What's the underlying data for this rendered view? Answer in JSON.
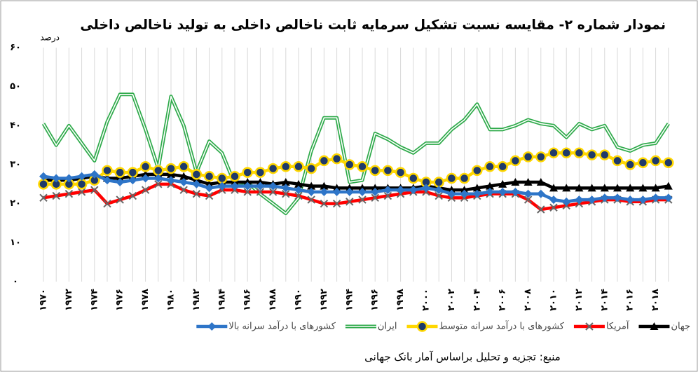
{
  "chart_data": {
    "type": "line",
    "title": "نمودار شماره ۲- مقایسه نسبت تشکیل سرمایه ثابت ناخالص داخلی به تولید ناخالص داخلی",
    "y_label": "درصد",
    "source": "منبع: تجزیه و تحلیل براساس آمار بانک جهانی",
    "categories": [
      "۱۹۷۰",
      null,
      "۱۹۷۲",
      null,
      "۱۹۷۴",
      null,
      "۱۹۷۶",
      null,
      "۱۹۷۸",
      null,
      "۱۹۸۰",
      null,
      "۱۹۸۲",
      null,
      "۱۹۸۴",
      null,
      "۱۹۸۶",
      null,
      "۱۹۸۸",
      null,
      "۱۹۹۰",
      null,
      "۱۹۹۲",
      null,
      "۱۹۹۴",
      null,
      "۱۹۹۶",
      null,
      "۱۹۹۸",
      null,
      "۲۰۰۰",
      null,
      "۲۰۰۲",
      null,
      "۲۰۰۴",
      null,
      "۲۰۰۶",
      null,
      "۲۰۰۸",
      null,
      "۲۰۱۰",
      null,
      "۲۰۱۲",
      null,
      "۲۰۱۴",
      null,
      "۲۰۱۶",
      null,
      "۲۰۱۸",
      null
    ],
    "series": [
      {
        "name": "جهان",
        "color": "#000000",
        "marker": "triangle",
        "values": [
          26,
          26,
          26,
          26.5,
          27,
          26.5,
          26.5,
          27,
          27.5,
          27.5,
          27.5,
          27,
          26,
          25,
          25.5,
          25.5,
          25.5,
          25.5,
          25,
          25.5,
          25,
          24.5,
          24.5,
          24,
          24,
          24,
          24,
          24,
          24,
          24,
          24.5,
          24,
          23.5,
          23.5,
          24,
          24.5,
          25,
          25.5,
          25.5,
          25.5,
          24,
          24,
          24,
          24,
          24,
          24,
          24,
          24,
          24,
          24.5
        ]
      },
      {
        "name": "آمریکا",
        "color": "#ff0000",
        "marker": "cross",
        "values": [
          21.5,
          22,
          22.5,
          23,
          23.5,
          20,
          21,
          22,
          23.5,
          25,
          25,
          23.5,
          22.5,
          22,
          23.5,
          23.5,
          23,
          23,
          23,
          22.5,
          22,
          21,
          20,
          20,
          20.5,
          21,
          21.5,
          22,
          22.5,
          23,
          23,
          22,
          21.5,
          21.5,
          22,
          22.5,
          22.5,
          22.5,
          21,
          18.5,
          19,
          19.5,
          20,
          20.5,
          21,
          21,
          20.5,
          20.5,
          21,
          21
        ]
      },
      {
        "name": "کشورهای با درآمد سرانه متوسط",
        "color": "#ffd700",
        "marker": "circle",
        "values": [
          25,
          25,
          25,
          25,
          26,
          28.5,
          28,
          28,
          29.5,
          28.5,
          29,
          29.5,
          27.5,
          27,
          26.5,
          27,
          28,
          28,
          29,
          29.5,
          29.5,
          29,
          31,
          31.5,
          30,
          29.5,
          28.5,
          28.5,
          28,
          26.5,
          25.5,
          25.5,
          26.5,
          26.5,
          28.5,
          29.5,
          29.5,
          31,
          32,
          32,
          33,
          33,
          33,
          32.5,
          32.5,
          31,
          30,
          30.5,
          31,
          30.5
        ]
      },
      {
        "name": "ایران",
        "color": "#2eaa4a",
        "marker": "double",
        "values": [
          40.5,
          35,
          40,
          35.5,
          31,
          41,
          48,
          48,
          39,
          29,
          47.5,
          40,
          28,
          36,
          33,
          25,
          25.5,
          22.5,
          20,
          17.5,
          21.5,
          33.5,
          42,
          42,
          25.5,
          26,
          38,
          36.5,
          34.5,
          33,
          35.5,
          35.5,
          39,
          41.5,
          45.5,
          39,
          39,
          40,
          41.5,
          40.5,
          40,
          37,
          40.5,
          39,
          40,
          34.5,
          33.5,
          35,
          35.5,
          40.5
        ]
      },
      {
        "name": "کشورهای با درآمد سرانه بالا",
        "color": "#2e75c8",
        "marker": "diamond",
        "values": [
          27,
          26.5,
          26.5,
          27,
          27.5,
          26,
          25.5,
          26,
          26.5,
          26.5,
          26,
          25.5,
          25,
          24,
          24.5,
          24.5,
          24.5,
          24.5,
          24.5,
          24,
          23.5,
          23,
          23,
          23,
          23,
          23,
          23,
          23.5,
          23.5,
          23.5,
          24,
          23.5,
          22.5,
          22.5,
          22.5,
          23,
          23,
          23,
          22.5,
          22.5,
          21,
          20.5,
          21,
          21,
          21.5,
          21.5,
          21,
          21,
          21.5,
          21.5
        ]
      }
    ],
    "ylim": [
      0,
      60
    ],
    "yticks": [
      {
        "value": 0,
        "label": "۰"
      },
      {
        "value": 10,
        "label": "۱۰"
      },
      {
        "value": 20,
        "label": "۲۰"
      },
      {
        "value": 30,
        "label": "۳۰"
      },
      {
        "value": 40,
        "label": "۴۰"
      },
      {
        "value": 50,
        "label": "۵۰"
      },
      {
        "value": 60,
        "label": "۶۰"
      }
    ],
    "grid": false
  }
}
